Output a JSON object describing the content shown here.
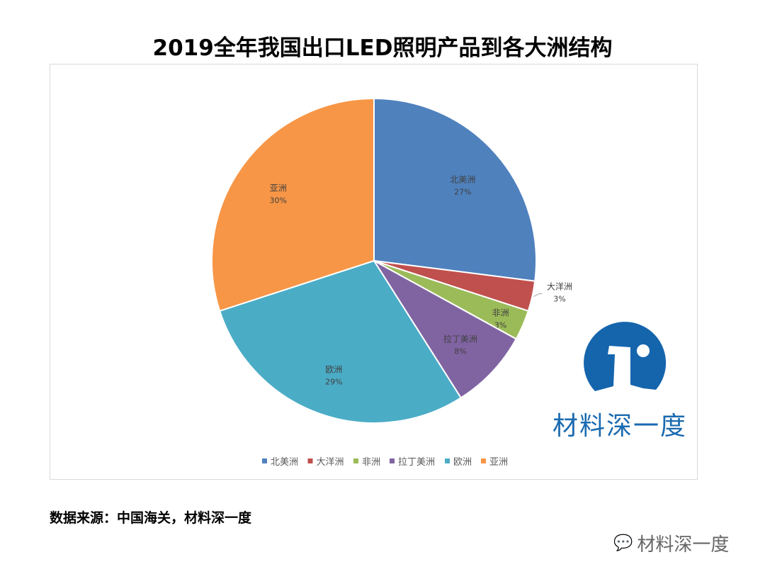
{
  "chart_data": {
    "type": "pie",
    "title": "2019全年我国出口LED照明产品到各大洲结构",
    "categories": [
      "北美洲",
      "大洋洲",
      "非洲",
      "拉丁美洲",
      "欧洲",
      "亚洲"
    ],
    "values": [
      27,
      3,
      3,
      8,
      29,
      30
    ],
    "labels": [
      "27%",
      "3%",
      "3%",
      "8%",
      "29%",
      "30%"
    ],
    "colors": [
      "#4f81bd",
      "#c0504d",
      "#9bbb59",
      "#8064a2",
      "#4bacc6",
      "#f79646"
    ],
    "start": "top, clockwise",
    "legend_position": "bottom"
  },
  "source": "数据来源：中国海关，材料深一度",
  "logo_text": "材料深一度",
  "watermark": "材料深一度"
}
